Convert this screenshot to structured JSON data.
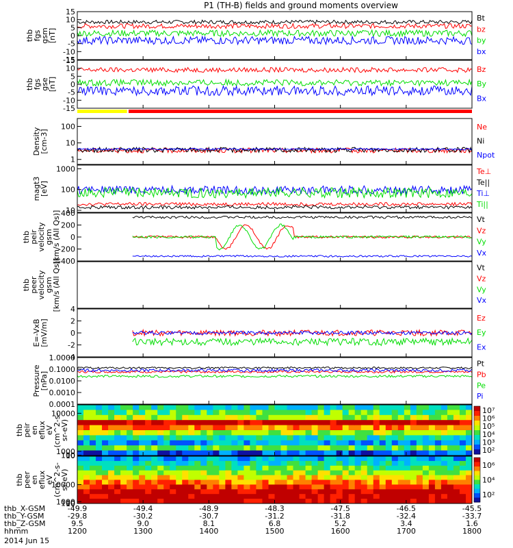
{
  "title": "P1 (TH-B) fields and ground moments overview",
  "date_label": "2014 Jun 15",
  "colors": {
    "black": "#000000",
    "red": "#ff0000",
    "green": "#00dd00",
    "blue": "#0000ff",
    "yellow": "#ffff00"
  },
  "chart_data": [
    {
      "type": "line",
      "id": "fgs_gsm",
      "ylabel": [
        "thb",
        "fgs",
        "gsm",
        "[nT]"
      ],
      "yticks": [
        15,
        10,
        5,
        0,
        -5,
        -10,
        -15
      ],
      "ylim": [
        -15,
        15
      ],
      "series": [
        {
          "name": "Bt",
          "color": "#000000",
          "level": 8.5,
          "noise": 1.2,
          "start": 0
        },
        {
          "name": "bz",
          "color": "#ff0000",
          "level": 6,
          "noise": 1.5,
          "start": 0
        },
        {
          "name": "by",
          "color": "#00dd00",
          "level": 1.5,
          "noise": 2,
          "start": 0
        },
        {
          "name": "bx",
          "color": "#0000ff",
          "level": -3,
          "noise": 2.5,
          "start": 0
        }
      ]
    },
    {
      "type": "line",
      "id": "fgs_gse",
      "ylabel": [
        "thb",
        "fgs",
        "gse",
        "[nT]"
      ],
      "yticks": [
        15,
        10,
        5,
        0,
        -5,
        -10,
        -15
      ],
      "ylim": [
        -15,
        15
      ],
      "series": [
        {
          "name": "Bz",
          "color": "#ff0000",
          "level": 9,
          "noise": 1.5,
          "start": 0
        },
        {
          "name": "By",
          "color": "#00dd00",
          "level": 1,
          "noise": 2,
          "start": 0
        },
        {
          "name": "Bx",
          "color": "#0000ff",
          "level": -4,
          "noise": 3,
          "start": 0
        }
      ]
    },
    {
      "type": "line",
      "id": "density",
      "ylabel": [
        "Density",
        "[cm-3]"
      ],
      "log": true,
      "yticks": [
        100,
        10,
        1
      ],
      "yticklabels": [
        "100",
        "10",
        "1"
      ],
      "ylim": [
        0.5,
        300
      ],
      "series": [
        {
          "name": "Ne",
          "color": "#ff0000",
          "level": 3.5,
          "noise": 0.15,
          "start": 0
        },
        {
          "name": "Ni",
          "color": "#000000",
          "level": 3.8,
          "noise": 0.15,
          "start": 0
        },
        {
          "name": "Npot",
          "color": "#0000ff",
          "level": 4.2,
          "noise": 0.05,
          "start": 0
        }
      ]
    },
    {
      "type": "line",
      "id": "temperature",
      "ylabel": [
        "magt3",
        "[eV]"
      ],
      "log": true,
      "yticks": [
        1000,
        100,
        10
      ],
      "yticklabels": [
        "1000",
        "100",
        "10"
      ],
      "ylim": [
        8,
        1500
      ],
      "series": [
        {
          "name": "Te⊥",
          "color": "#ff0000",
          "level": 20,
          "noise": 0.08,
          "start": 0
        },
        {
          "name": "Te||",
          "color": "#000000",
          "level": 14,
          "noise": 0.08,
          "start": 0
        },
        {
          "name": "Ti⊥",
          "color": "#0000ff",
          "level": 95,
          "noise": 0.2,
          "start": 0
        },
        {
          "name": "Ti||",
          "color": "#00dd00",
          "level": 70,
          "noise": 0.25,
          "start": 0
        }
      ]
    },
    {
      "type": "line",
      "id": "peir_velocity",
      "ylabel": [
        "thb",
        "peir",
        "velocity",
        "gsm",
        "[km/s (All Qs)]"
      ],
      "yticks": [
        400,
        200,
        0,
        -200,
        -400
      ],
      "ylim": [
        -400,
        400
      ],
      "series": [
        {
          "name": "Vt",
          "color": "#000000",
          "level": 330,
          "noise": 20,
          "start": 0.14
        },
        {
          "name": "Vz",
          "color": "#ff0000",
          "level": 0,
          "noise": 20,
          "start": 0.14
        },
        {
          "name": "Vy",
          "color": "#00dd00",
          "level": 0,
          "noise": 20,
          "start": 0.14
        },
        {
          "name": "Vx",
          "color": "#0000ff",
          "level": -320,
          "noise": 15,
          "start": 0.14
        }
      ]
    },
    {
      "type": "line",
      "id": "peer_velocity",
      "ylabel": [
        "thb",
        "peer",
        "velocity",
        "gsm",
        "[km/s (All Qs)]"
      ],
      "yticks": [],
      "ylim": [
        -400,
        400
      ],
      "series": [
        {
          "name": "Vt",
          "color": "#000000",
          "level": 0,
          "noise": 0,
          "start": 2
        },
        {
          "name": "Vz",
          "color": "#ff0000",
          "level": 0,
          "noise": 0,
          "start": 2
        },
        {
          "name": "Vy",
          "color": "#00dd00",
          "level": 0,
          "noise": 0,
          "start": 2
        },
        {
          "name": "Vx",
          "color": "#0000ff",
          "level": 0,
          "noise": 0,
          "start": 2
        }
      ]
    },
    {
      "type": "line",
      "id": "efield",
      "ylabel": [
        "E=-VxB",
        "[mV/m]"
      ],
      "yticks": [
        4,
        2,
        0,
        -2,
        -4
      ],
      "ylim": [
        -4,
        4
      ],
      "series": [
        {
          "name": "Ez",
          "color": "#ff0000",
          "level": 0,
          "noise": 0.5,
          "start": 0.14
        },
        {
          "name": "Ey",
          "color": "#00dd00",
          "level": -1.5,
          "noise": 0.6,
          "start": 0.14
        },
        {
          "name": "Ex",
          "color": "#0000ff",
          "level": 0,
          "noise": 0.3,
          "start": 0.14
        }
      ]
    },
    {
      "type": "line",
      "id": "pressure",
      "ylabel": [
        "Pressure",
        "[nPa]"
      ],
      "log": true,
      "yticks": [
        1,
        0.1,
        0.01,
        0.001,
        0.0001
      ],
      "yticklabels": [
        "1.0000",
        "0.1000",
        "0.0100",
        "0.0010",
        "0.0001"
      ],
      "ylim": [
        0.0001,
        1
      ],
      "series": [
        {
          "name": "Pt",
          "color": "#000000",
          "level": 0.13,
          "noise": 0.08,
          "start": 0
        },
        {
          "name": "Pb",
          "color": "#ff0000",
          "level": 0.06,
          "noise": 0.1,
          "start": 0
        },
        {
          "name": "Pe",
          "color": "#00dd00",
          "level": 0.025,
          "noise": 0.1,
          "start": 0
        },
        {
          "name": "Pi",
          "color": "#0000ff",
          "level": 0.08,
          "noise": 0.12,
          "start": 0
        }
      ]
    },
    {
      "type": "heatmap",
      "id": "peir_en_eflux",
      "ylabel": [
        "thb",
        "peir",
        "en",
        "eflux",
        "eV",
        "(cm^2-s-",
        "sr-eV)"
      ],
      "yticks": [
        10000,
        1000,
        100,
        10
      ],
      "yticklabels": [
        "10000",
        "1000",
        "100",
        "10"
      ],
      "ylim": [
        5,
        12000
      ],
      "colorbar": [
        "10⁷",
        "10⁶",
        "10⁵",
        "10⁴",
        "10³",
        "10²"
      ]
    },
    {
      "type": "heatmap",
      "id": "peer_en_eflux",
      "ylabel": [
        "thb",
        "peer",
        "en",
        "eflux",
        "eV",
        "(cm^2-s-",
        "sr-eV)"
      ],
      "yticks": [
        10000,
        1000,
        100,
        10
      ],
      "yticklabels": [
        "10000",
        "1000",
        "100",
        "10"
      ],
      "ylim": [
        5,
        25000
      ],
      "colorbar": [
        "10⁶",
        "10⁴",
        "10²"
      ]
    }
  ],
  "xaxis": {
    "rows": [
      {
        "label": "thb_X-GSM",
        "values": [
          "-49.9",
          "-49.4",
          "-48.9",
          "-48.3",
          "-47.5",
          "-46.5",
          "-45.5"
        ]
      },
      {
        "label": "thb_Y-GSM",
        "values": [
          "-29.8",
          "-30.2",
          "-30.7",
          "-31.2",
          "-31.8",
          "-32.4",
          "-33.7"
        ]
      },
      {
        "label": "thb_Z-GSM",
        "values": [
          "9.5",
          "9.0",
          "8.1",
          "6.8",
          "5.2",
          "3.4",
          "1.6"
        ]
      },
      {
        "label": "hhmm",
        "values": [
          "1200",
          "1300",
          "1400",
          "1500",
          "1600",
          "1700",
          "1800"
        ]
      }
    ]
  }
}
